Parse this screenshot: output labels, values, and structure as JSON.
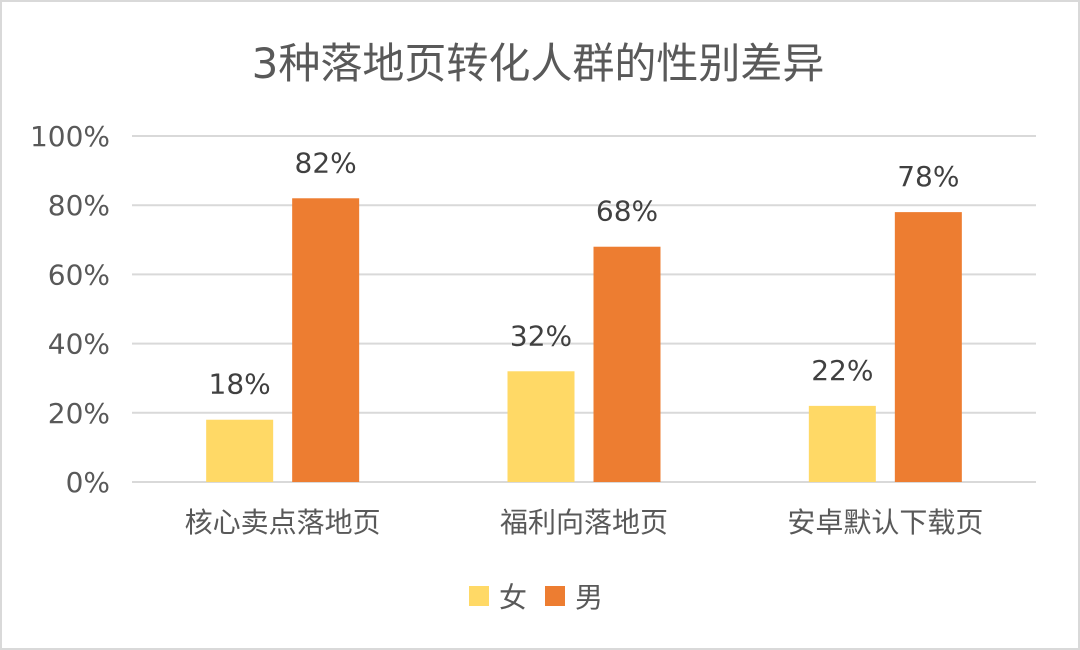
{
  "chart_data": {
    "type": "bar",
    "title": "3种落地页转化人群的性别差异",
    "categories": [
      "核心卖点落地页",
      "福利向落地页",
      "安卓默认下载页"
    ],
    "series": [
      {
        "name": "女",
        "values": [
          18,
          32,
          22
        ],
        "color": "#FFD966"
      },
      {
        "name": "男",
        "values": [
          82,
          68,
          78
        ],
        "color": "#ED7D31"
      }
    ],
    "value_labels": [
      [
        "18%",
        "32%",
        "22%"
      ],
      [
        "82%",
        "68%",
        "78%"
      ]
    ],
    "y_ticks": [
      "0%",
      "20%",
      "40%",
      "60%",
      "80%",
      "100%"
    ],
    "ylim": [
      0,
      100
    ],
    "grid": true,
    "legend_position": "bottom"
  }
}
